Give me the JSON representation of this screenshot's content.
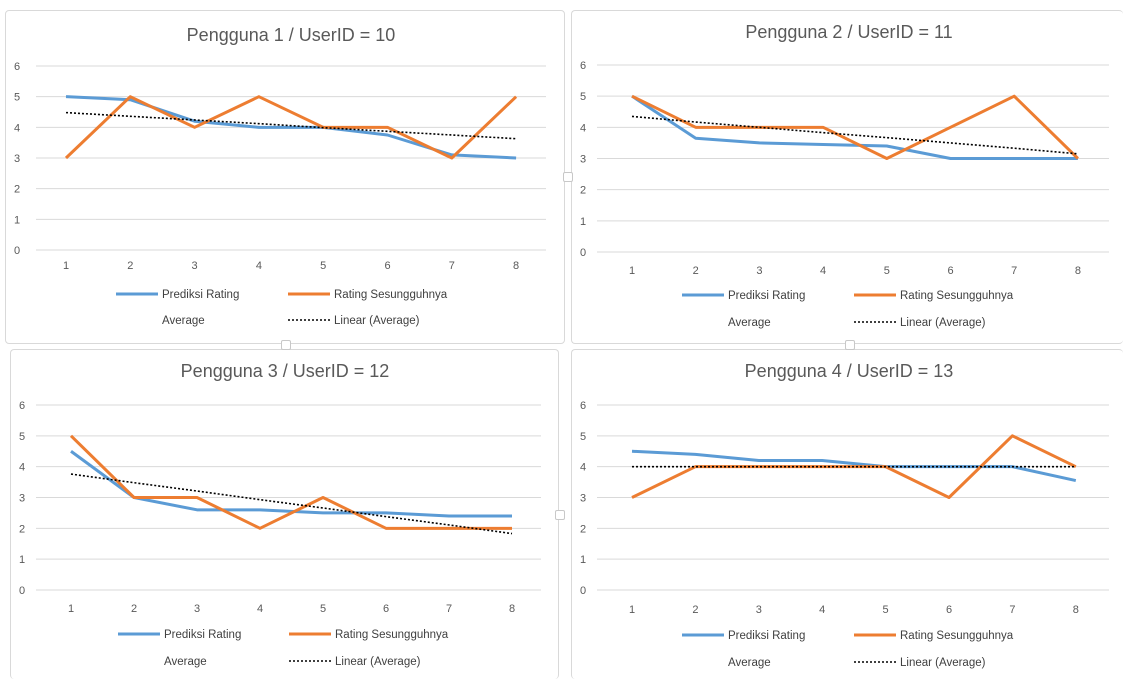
{
  "colors": {
    "prediksi": "#5b9bd5",
    "rating": "#ed7d31",
    "trend": "#000000",
    "grid": "#d9d9d9",
    "text": "#595959"
  },
  "legend": {
    "prediksi": "Prediksi Rating",
    "rating": "Rating Sesungguhnya",
    "average": "Average",
    "linear": "Linear (Average)"
  },
  "chart_data": [
    {
      "type": "line",
      "title": "Pengguna 1 / UserID = 10",
      "categories": [
        "1",
        "2",
        "3",
        "4",
        "5",
        "6",
        "7",
        "8"
      ],
      "ylim": [
        0,
        6
      ],
      "y_ticks": [
        "0",
        "1",
        "2",
        "3",
        "4",
        "5",
        "6"
      ],
      "grid": true,
      "legend_position": "bottom",
      "series": [
        {
          "name": "Prediksi Rating",
          "values": [
            5,
            4.9,
            4.2,
            4,
            4,
            3.75,
            3.1,
            3
          ]
        },
        {
          "name": "Rating Sesungguhnya",
          "values": [
            3,
            5,
            4,
            5,
            4,
            4,
            3,
            5
          ]
        },
        {
          "name": "Linear (Average)",
          "values": [
            4.48,
            4.36,
            4.24,
            4.12,
            3.99,
            3.87,
            3.75,
            3.63
          ]
        }
      ]
    },
    {
      "type": "line",
      "title": "Pengguna 2 / UserID = 11",
      "categories": [
        "1",
        "2",
        "3",
        "4",
        "5",
        "6",
        "7",
        "8"
      ],
      "ylim": [
        0,
        6
      ],
      "y_ticks": [
        "0",
        "1",
        "2",
        "3",
        "4",
        "5",
        "6"
      ],
      "grid": true,
      "legend_position": "bottom",
      "series": [
        {
          "name": "Prediksi Rating",
          "values": [
            5,
            3.65,
            3.5,
            3.45,
            3.4,
            3,
            3,
            3
          ]
        },
        {
          "name": "Rating Sesungguhnya",
          "values": [
            5,
            4,
            4,
            4,
            3,
            4,
            5,
            3
          ]
        },
        {
          "name": "Linear (Average)",
          "values": [
            4.35,
            4.17,
            4.0,
            3.83,
            3.67,
            3.5,
            3.33,
            3.15
          ]
        }
      ]
    },
    {
      "type": "line",
      "title": "Pengguna 3 / UserID = 12",
      "categories": [
        "1",
        "2",
        "3",
        "4",
        "5",
        "6",
        "7",
        "8"
      ],
      "ylim": [
        0,
        6
      ],
      "y_ticks": [
        "0",
        "1",
        "2",
        "3",
        "4",
        "5",
        "6"
      ],
      "grid": true,
      "legend_position": "bottom",
      "series": [
        {
          "name": "Prediksi Rating",
          "values": [
            4.5,
            3,
            2.6,
            2.6,
            2.5,
            2.5,
            2.4,
            2.4
          ]
        },
        {
          "name": "Rating Sesungguhnya",
          "values": [
            5,
            3,
            3,
            2,
            3,
            2,
            2,
            2
          ]
        },
        {
          "name": "Linear (Average)",
          "values": [
            3.76,
            3.48,
            3.21,
            2.93,
            2.66,
            2.38,
            2.11,
            1.83
          ]
        }
      ]
    },
    {
      "type": "line",
      "title": "Pengguna 4 / UserID = 13",
      "categories": [
        "1",
        "2",
        "3",
        "4",
        "5",
        "6",
        "7",
        "8"
      ],
      "ylim": [
        0,
        6
      ],
      "y_ticks": [
        "0",
        "1",
        "2",
        "3",
        "4",
        "5",
        "6"
      ],
      "grid": true,
      "legend_position": "bottom",
      "series": [
        {
          "name": "Prediksi Rating",
          "values": [
            4.5,
            4.4,
            4.2,
            4.2,
            4,
            4,
            4,
            3.55
          ]
        },
        {
          "name": "Rating Sesungguhnya",
          "values": [
            3,
            4,
            4,
            4,
            4,
            3,
            5,
            4
          ]
        },
        {
          "name": "Linear (Average)",
          "values": [
            4,
            4,
            4,
            4,
            4,
            4,
            4,
            4
          ]
        }
      ]
    }
  ]
}
